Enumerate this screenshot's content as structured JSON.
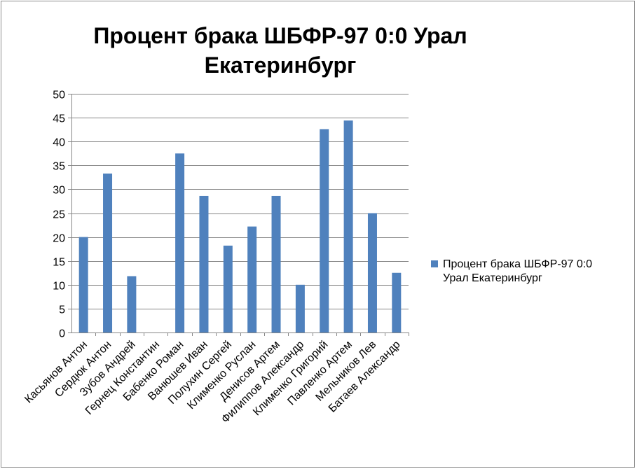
{
  "chart_data": {
    "type": "bar",
    "title_line1": "Процент брака ШБФР-97  0:0  Урал",
    "title_line2": "Екатеринбург",
    "categories": [
      "Касьянов Антон",
      "Сердюк Антон",
      "Зубов Андрей",
      "Гернец Константин",
      "Бабенко Роман",
      "Ванюшев Иван",
      "Полухин Сергей",
      "Клименко Руслан",
      "Денисов Артем",
      "Филиппов Александр",
      "Клименко Григорий",
      "Павленко Артем",
      "Мельников Лев",
      "Батаев Александр"
    ],
    "series": [
      {
        "name": "Процент брака ШБФР-97  0:0  Урал Екатеринбург",
        "values": [
          20,
          33.3,
          11.8,
          0,
          37.5,
          28.6,
          18.2,
          22.2,
          28.6,
          10,
          42.6,
          44.4,
          25,
          12.5
        ],
        "color": "#4f81bd"
      }
    ],
    "ylim": [
      0,
      50
    ],
    "yticks": [
      0,
      5,
      10,
      15,
      20,
      25,
      30,
      35,
      40,
      45,
      50
    ],
    "grid": true,
    "legend_position": "right",
    "xlabel": "",
    "ylabel": ""
  },
  "legend": {
    "line1": "Процент брака ШБФР-97  0:0",
    "line2": "Урал Екатеринбург"
  }
}
